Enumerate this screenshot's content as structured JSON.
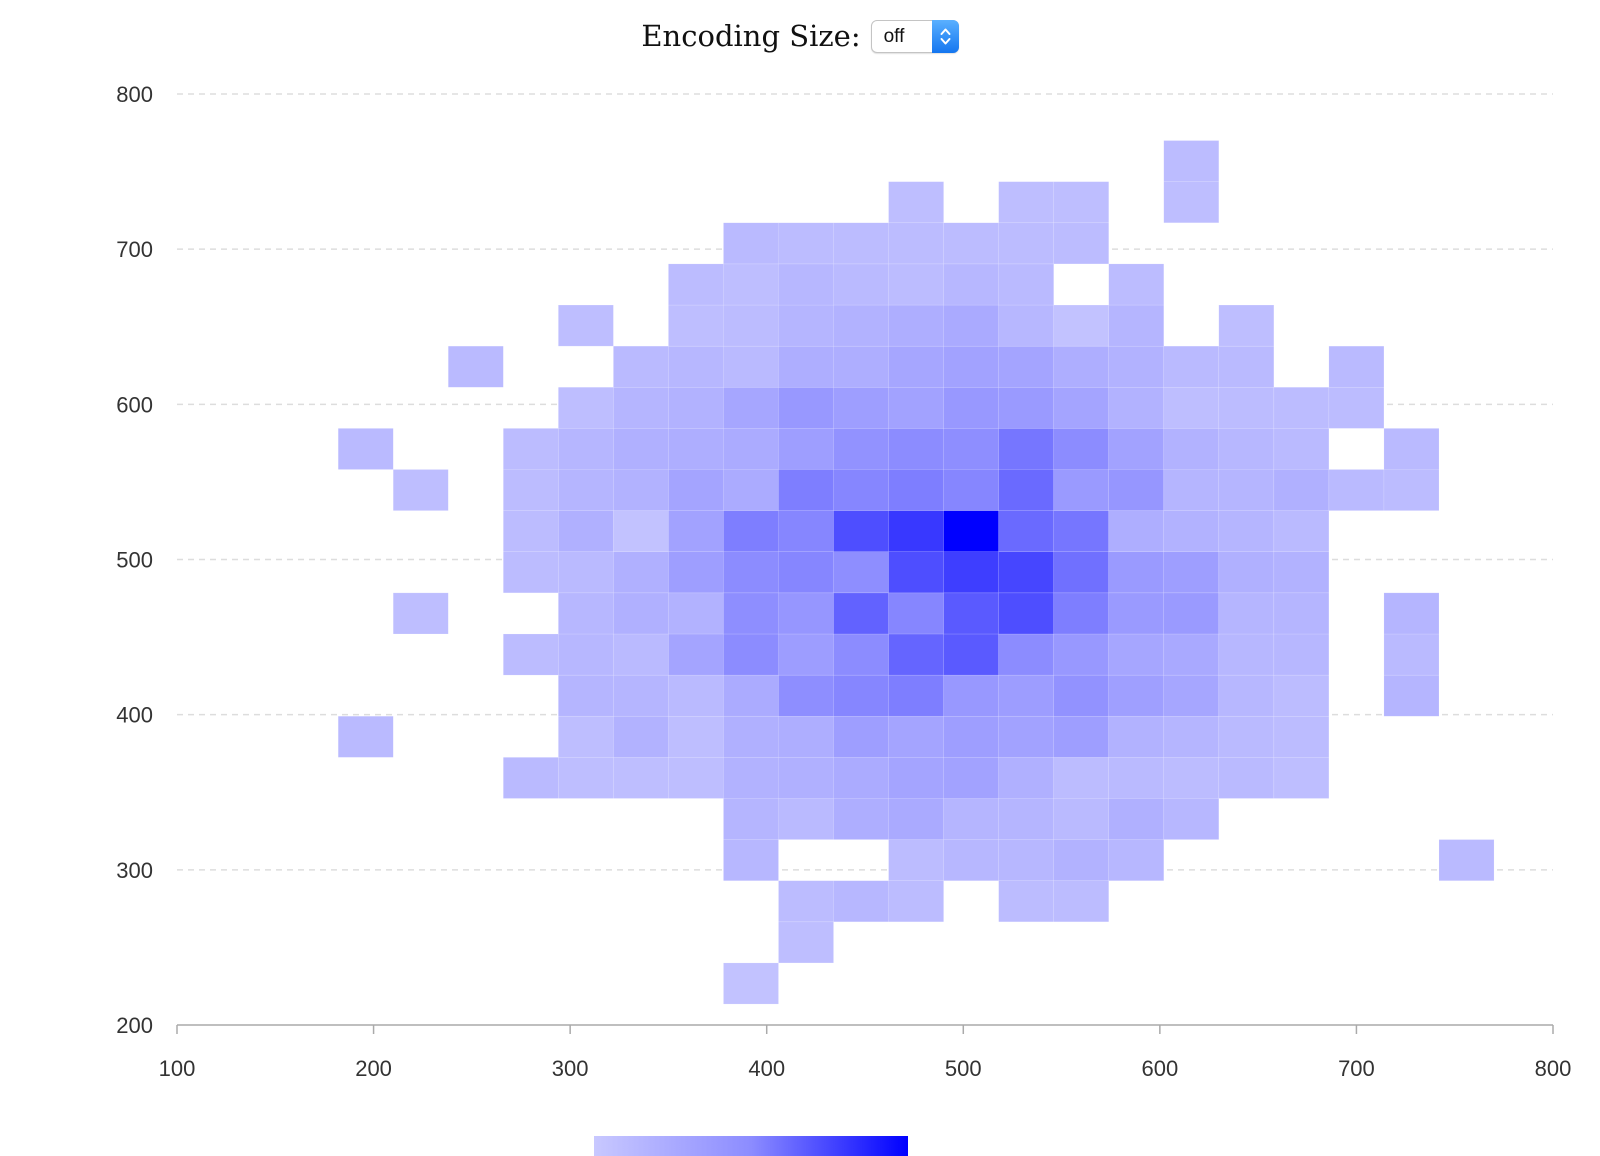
{
  "controls": {
    "label": "Encoding Size:",
    "select_value": "off",
    "stepper_icon": "up-down-chevron-icon"
  },
  "chart_data": {
    "type": "heatmap",
    "title": "",
    "xlabel": "",
    "ylabel": "",
    "xlim": [
      100,
      800
    ],
    "ylim": [
      200,
      800
    ],
    "bin_width": 28,
    "bin_height": 26.5,
    "x_origin": 280,
    "y_origin": 213.5,
    "x_ticks": [
      100,
      200,
      300,
      400,
      500,
      600,
      700,
      800
    ],
    "y_ticks": [
      200,
      300,
      400,
      500,
      600,
      700,
      800
    ],
    "grid": "horizontal dashed",
    "colors": {
      "low": "#c8c8ff",
      "mid": "#8c8cff",
      "high": "#0000ff"
    },
    "value_scale": "relative density 0-1",
    "rows": [
      {
        "y": 226.75,
        "x_start": 392,
        "values": [
          0.05
        ]
      },
      {
        "y": 253.25,
        "x_start": 420,
        "values": [
          0.08
        ]
      },
      {
        "y": 279.75,
        "x_start": 420,
        "values": [
          0.1,
          0.14,
          0.1,
          null,
          0.1,
          0.1
        ]
      },
      {
        "y": 306.25,
        "x_start": 392,
        "values": [
          0.14,
          null,
          null,
          0.1,
          0.14,
          0.14,
          0.18,
          0.14
        ]
      },
      {
        "y": 306.25,
        "x_start": 756,
        "values": [
          0.12
        ]
      },
      {
        "y": 332.75,
        "x_start": 392,
        "values": [
          0.16,
          0.12,
          0.22,
          0.25,
          0.16,
          0.16,
          0.12,
          0.2,
          0.14
        ]
      },
      {
        "y": 359.25,
        "x_start": 280,
        "values": [
          0.12,
          0.08,
          0.08,
          0.08,
          0.18,
          0.2,
          0.24,
          0.3,
          0.32,
          0.2,
          0.1,
          0.12,
          0.1,
          0.12,
          0.08
        ]
      },
      {
        "y": 385.75,
        "x_start": 196,
        "values": [
          0.12
        ]
      },
      {
        "y": 385.75,
        "x_start": 308,
        "values": [
          0.08,
          0.18,
          0.08,
          0.2,
          0.22,
          0.35,
          0.3,
          0.35,
          0.32,
          0.35,
          0.18,
          0.16,
          0.12,
          0.1
        ]
      },
      {
        "y": 412.25,
        "x_start": 308,
        "values": [
          0.16,
          0.16,
          0.12,
          0.24,
          0.48,
          0.52,
          0.55,
          0.4,
          0.36,
          0.45,
          0.34,
          0.28,
          0.14,
          0.1
        ]
      },
      {
        "y": 412.25,
        "x_start": 728,
        "values": [
          0.16
        ]
      },
      {
        "y": 438.75,
        "x_start": 280,
        "values": [
          0.1,
          0.14,
          0.12,
          0.3,
          0.5,
          0.36,
          0.5,
          0.64,
          0.68,
          0.5,
          0.4,
          0.28,
          0.26,
          0.14,
          0.14
        ]
      },
      {
        "y": 438.75,
        "x_start": 728,
        "values": [
          0.12
        ]
      },
      {
        "y": 465.25,
        "x_start": 224,
        "values": [
          0.08
        ]
      },
      {
        "y": 465.25,
        "x_start": 308,
        "values": [
          0.14,
          0.2,
          0.18,
          0.48,
          0.42,
          0.65,
          0.52,
          0.68,
          0.72,
          0.55,
          0.38,
          0.38,
          0.16,
          0.16
        ]
      },
      {
        "y": 465.25,
        "x_start": 728,
        "values": [
          0.16
        ]
      },
      {
        "y": 491.75,
        "x_start": 280,
        "values": [
          0.1,
          0.12,
          0.2,
          0.35,
          0.5,
          0.52,
          0.48,
          0.72,
          0.78,
          0.75,
          0.6,
          0.38,
          0.35,
          0.2,
          0.18
        ]
      },
      {
        "y": 518.25,
        "x_start": 280,
        "values": [
          0.1,
          0.2,
          0.05,
          0.32,
          0.55,
          0.52,
          0.72,
          0.8,
          1.0,
          0.62,
          0.58,
          0.22,
          0.18,
          0.16,
          0.12
        ]
      },
      {
        "y": 544.75,
        "x_start": 224,
        "values": [
          0.08
        ]
      },
      {
        "y": 544.75,
        "x_start": 280,
        "values": [
          0.1,
          0.16,
          0.18,
          0.3,
          0.24,
          0.55,
          0.52,
          0.55,
          0.52,
          0.62,
          0.38,
          0.42,
          0.16,
          0.16,
          0.2,
          0.12,
          0.1
        ]
      },
      {
        "y": 571.25,
        "x_start": 196,
        "values": [
          0.12
        ]
      },
      {
        "y": 571.25,
        "x_start": 280,
        "values": [
          0.1,
          0.15,
          0.2,
          0.22,
          0.24,
          0.35,
          0.45,
          0.5,
          0.48,
          0.58,
          0.5,
          0.32,
          0.18,
          0.14,
          0.12
        ]
      },
      {
        "y": 571.25,
        "x_start": 728,
        "values": [
          0.12
        ]
      },
      {
        "y": 597.75,
        "x_start": 308,
        "values": [
          0.08,
          0.16,
          0.18,
          0.28,
          0.4,
          0.35,
          0.32,
          0.4,
          0.38,
          0.3,
          0.18,
          0.08,
          0.1,
          0.1,
          0.1
        ]
      },
      {
        "y": 624.25,
        "x_start": 252,
        "values": [
          0.12
        ]
      },
      {
        "y": 624.25,
        "x_start": 336,
        "values": [
          0.12,
          0.14,
          0.12,
          0.22,
          0.22,
          0.28,
          0.32,
          0.3,
          0.22,
          0.18,
          0.12,
          0.12
        ]
      },
      {
        "y": 624.25,
        "x_start": 700,
        "values": [
          0.12
        ]
      },
      {
        "y": 650.75,
        "x_start": 308,
        "values": [
          0.08
        ]
      },
      {
        "y": 650.75,
        "x_start": 364,
        "values": [
          0.08,
          0.1,
          0.16,
          0.18,
          0.22,
          0.25,
          0.14,
          0.05,
          0.16
        ]
      },
      {
        "y": 650.75,
        "x_start": 644,
        "values": [
          0.08
        ]
      },
      {
        "y": 677.25,
        "x_start": 364,
        "values": [
          0.1,
          0.08,
          0.14,
          0.12,
          0.1,
          0.14,
          0.12,
          null,
          0.1
        ]
      },
      {
        "y": 703.75,
        "x_start": 392,
        "values": [
          0.12,
          0.1,
          0.1,
          0.1,
          0.1,
          0.1,
          0.1
        ]
      },
      {
        "y": 730.25,
        "x_start": 476,
        "values": [
          0.08,
          null,
          0.08,
          0.08
        ]
      },
      {
        "y": 730.25,
        "x_start": 616,
        "values": [
          0.08
        ]
      },
      {
        "y": 756.75,
        "x_start": 616,
        "values": [
          0.1
        ]
      }
    ]
  }
}
